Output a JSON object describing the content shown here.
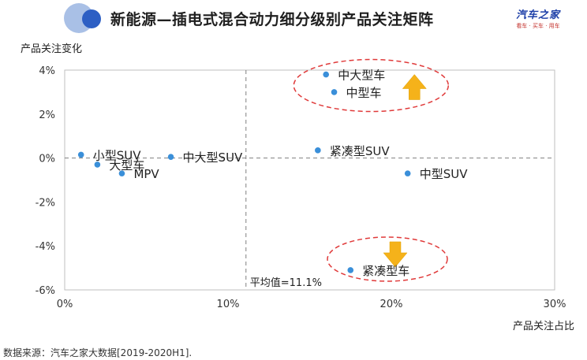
{
  "header": {
    "title": "新能源—插电式混合动力细分级别产品关注矩阵",
    "brand_name": "汽车之家",
    "brand_tagline": "看车 · 买车 · 用车",
    "logo_colors": [
      "#a9c0e6",
      "#2d5fc4"
    ]
  },
  "chart_data": {
    "type": "scatter",
    "title": "新能源—插电式混合动力细分级别产品关注矩阵",
    "xlabel": "产品关注占比",
    "ylabel": "产品关注变化",
    "xlim": [
      0,
      30
    ],
    "ylim": [
      -6,
      4
    ],
    "x_ticks": [
      0,
      10,
      20,
      30
    ],
    "y_ticks": [
      4,
      2,
      0,
      -2,
      -4,
      -6
    ],
    "x_tick_labels": [
      "0%",
      "10%",
      "20%",
      "30%"
    ],
    "y_tick_labels": [
      "4%",
      "2%",
      "0%",
      "-2%",
      "-4%",
      "-6%"
    ],
    "point_color": "#3a8fd9",
    "highlight_color": "#e03a3a",
    "arrow_color": "#f5b21a",
    "grid": false,
    "points": [
      {
        "label": "小型SUV",
        "x": 1.0,
        "y": 0.15
      },
      {
        "label": "大型车",
        "x": 2.0,
        "y": -0.3
      },
      {
        "label": "MPV",
        "x": 3.5,
        "y": -0.7
      },
      {
        "label": "中大型SUV",
        "x": 6.5,
        "y": 0.05
      },
      {
        "label": "中大型车",
        "x": 16.0,
        "y": 3.8
      },
      {
        "label": "中型车",
        "x": 16.5,
        "y": 3.0
      },
      {
        "label": "紧凑型SUV",
        "x": 15.5,
        "y": 0.35
      },
      {
        "label": "中型SUV",
        "x": 21.0,
        "y": -0.7
      },
      {
        "label": "紧凑型车",
        "x": 17.5,
        "y": -5.1
      }
    ],
    "average_line": {
      "x": 11.1,
      "label": "平均值=11.1%"
    },
    "highlights": [
      {
        "name": "growth",
        "direction": "up",
        "cx": 19.0,
        "cy": 3.3
      },
      {
        "name": "decline",
        "direction": "down",
        "cx": 20.0,
        "cy": -4.6
      }
    ]
  },
  "source": "数据来源：汽车之家大数据[2019-2020H1]."
}
